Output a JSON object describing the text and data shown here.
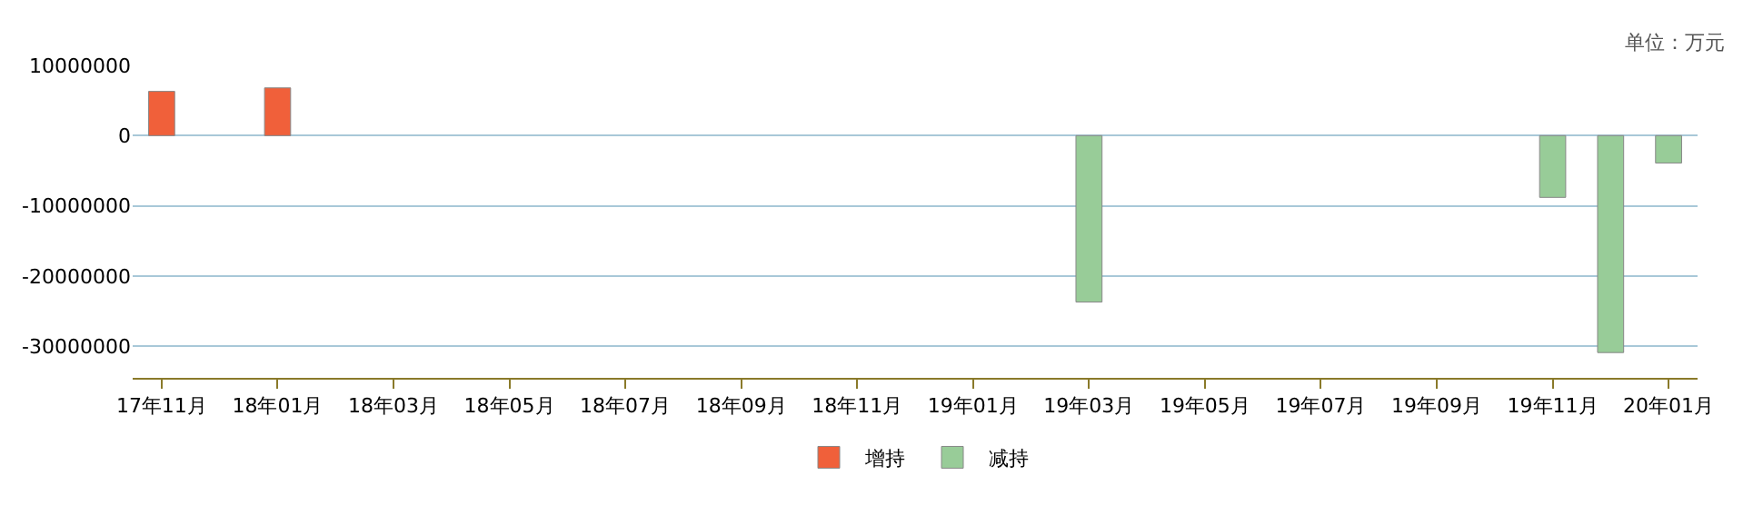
{
  "chart_data": {
    "type": "bar",
    "stacked": true,
    "categories": [
      "17年11月",
      null,
      "18年01月",
      null,
      "18年03月",
      null,
      "18年05月",
      null,
      "18年07月",
      null,
      "18年09月",
      null,
      "18年11月",
      null,
      "19年01月",
      null,
      "19年03月",
      null,
      "19年05月",
      null,
      "19年07月",
      null,
      "19年09月",
      null,
      "19年11月",
      null,
      "20年01月"
    ],
    "series": [
      {
        "name": "增持",
        "color": "#f0603a",
        "values": [
          6300000,
          null,
          6800000,
          null,
          null,
          null,
          null,
          null,
          null,
          null,
          null,
          null,
          null,
          null,
          null,
          null,
          null,
          null,
          null,
          null,
          null,
          null,
          null,
          null,
          null,
          null,
          null
        ]
      },
      {
        "name": "减持",
        "color": "#98cc98",
        "values": [
          null,
          null,
          null,
          null,
          null,
          null,
          null,
          null,
          null,
          null,
          null,
          null,
          null,
          null,
          null,
          null,
          -23700000,
          null,
          null,
          null,
          null,
          null,
          null,
          null,
          -8800000,
          -30900000,
          -3900000
        ]
      }
    ],
    "ylim": [
      -34500000,
      10000000
    ],
    "yticks": [
      -30000000,
      -20000000,
      -10000000,
      0,
      10000000
    ],
    "grid": "y",
    "legend": "bottom",
    "annotations": [
      "单位：万元"
    ]
  }
}
